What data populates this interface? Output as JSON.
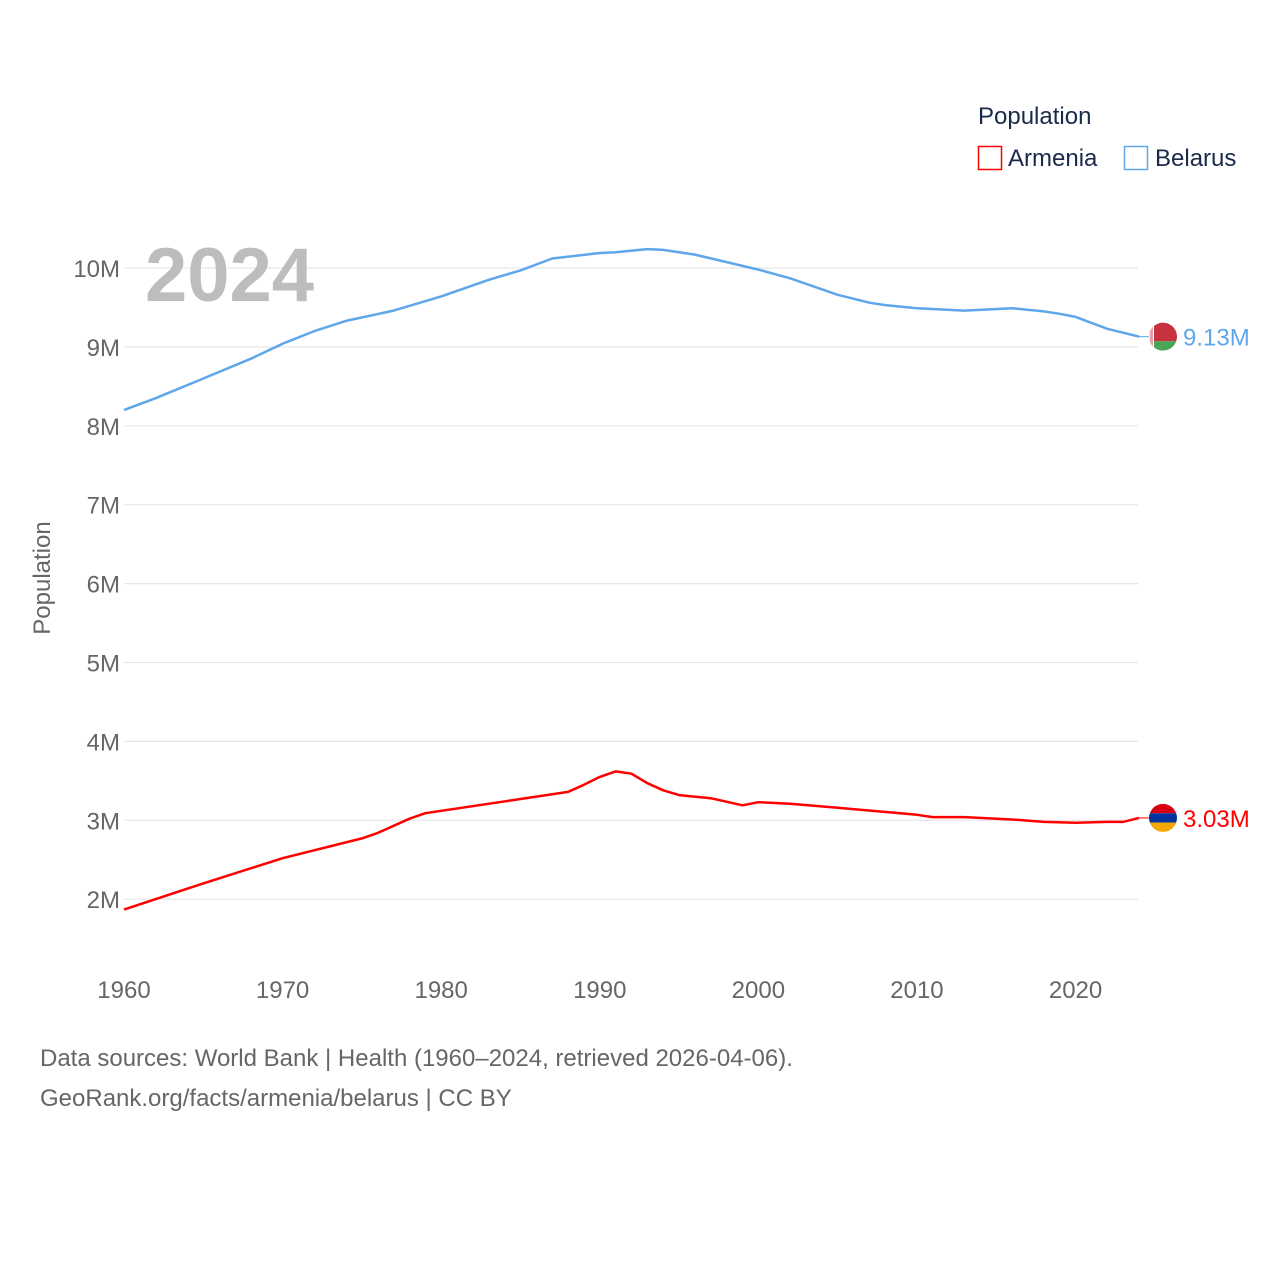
{
  "chart_data": {
    "type": "line",
    "year_label": "2024",
    "ylabel": "Population",
    "xlabel": "",
    "xlim": [
      1960,
      2024
    ],
    "ylim_visible": [
      2,
      10
    ],
    "y_ticks": [
      {
        "v": 2,
        "label": "2M"
      },
      {
        "v": 3,
        "label": "3M"
      },
      {
        "v": 4,
        "label": "4M"
      },
      {
        "v": 5,
        "label": "5M"
      },
      {
        "v": 6,
        "label": "6M"
      },
      {
        "v": 7,
        "label": "7M"
      },
      {
        "v": 8,
        "label": "8M"
      },
      {
        "v": 9,
        "label": "9M"
      },
      {
        "v": 10,
        "label": "10M"
      }
    ],
    "x_ticks": [
      {
        "v": 1960,
        "label": "1960"
      },
      {
        "v": 1970,
        "label": "1970"
      },
      {
        "v": 1980,
        "label": "1980"
      },
      {
        "v": 1990,
        "label": "1990"
      },
      {
        "v": 2000,
        "label": "2000"
      },
      {
        "v": 2010,
        "label": "2010"
      },
      {
        "v": 2020,
        "label": "2020"
      }
    ],
    "legend": {
      "title": "Population",
      "placement": "top-right"
    },
    "series": [
      {
        "name": "Armenia",
        "color": "#ff0000",
        "end_label": "3.03M",
        "flag": "armenia-flag",
        "points": [
          [
            1960,
            1.87
          ],
          [
            1965,
            2.2
          ],
          [
            1970,
            2.52
          ],
          [
            1975,
            2.77
          ],
          [
            1976,
            2.84
          ],
          [
            1978,
            3.02
          ],
          [
            1979,
            3.09
          ],
          [
            1985,
            3.27
          ],
          [
            1988,
            3.36
          ],
          [
            1989,
            3.45
          ],
          [
            1990,
            3.55
          ],
          [
            1991,
            3.62
          ],
          [
            1992,
            3.59
          ],
          [
            1993,
            3.47
          ],
          [
            1994,
            3.38
          ],
          [
            1995,
            3.32
          ],
          [
            1997,
            3.28
          ],
          [
            1999,
            3.19
          ],
          [
            2000,
            3.23
          ],
          [
            2002,
            3.21
          ],
          [
            2005,
            3.16
          ],
          [
            2010,
            3.07
          ],
          [
            2011,
            3.04
          ],
          [
            2013,
            3.04
          ],
          [
            2016,
            3.01
          ],
          [
            2018,
            2.98
          ],
          [
            2020,
            2.97
          ],
          [
            2022,
            2.98
          ],
          [
            2023,
            2.98
          ],
          [
            2024,
            3.03
          ]
        ]
      },
      {
        "name": "Belarus",
        "color": "#5fa6ea",
        "end_label": "9.13M",
        "flag": "belarus-flag",
        "points": [
          [
            1960,
            8.2
          ],
          [
            1962,
            8.35
          ],
          [
            1965,
            8.6
          ],
          [
            1968,
            8.85
          ],
          [
            1970,
            9.04
          ],
          [
            1972,
            9.2
          ],
          [
            1974,
            9.33
          ],
          [
            1977,
            9.46
          ],
          [
            1980,
            9.64
          ],
          [
            1983,
            9.85
          ],
          [
            1985,
            9.97
          ],
          [
            1987,
            10.12
          ],
          [
            1990,
            10.19
          ],
          [
            1991,
            10.2
          ],
          [
            1993,
            10.24
          ],
          [
            1994,
            10.23
          ],
          [
            1996,
            10.17
          ],
          [
            2000,
            9.98
          ],
          [
            2002,
            9.87
          ],
          [
            2005,
            9.66
          ],
          [
            2007,
            9.56
          ],
          [
            2008,
            9.53
          ],
          [
            2010,
            9.49
          ],
          [
            2013,
            9.46
          ],
          [
            2016,
            9.49
          ],
          [
            2018,
            9.45
          ],
          [
            2019,
            9.42
          ],
          [
            2020,
            9.38
          ],
          [
            2022,
            9.23
          ],
          [
            2024,
            9.13
          ]
        ]
      }
    ]
  },
  "footer": {
    "line1": "Data sources: World Bank | Health (1960–2024, retrieved 2026-04-06).",
    "line2": "GeoRank.org/facts/armenia/belarus | CC BY"
  }
}
